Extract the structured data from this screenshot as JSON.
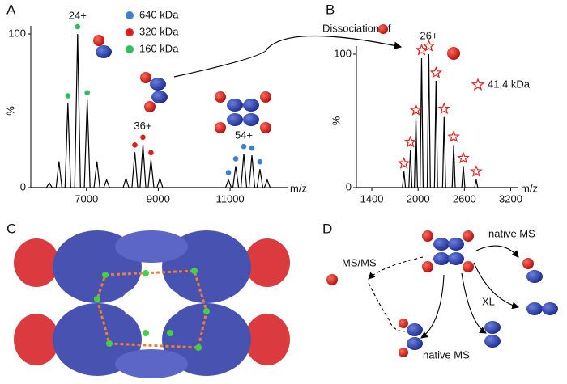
{
  "panel_labels": [
    "A",
    "B",
    "C",
    "D"
  ],
  "arrow_label": "Dissociation of",
  "diagram": {
    "labels": [
      "native MS",
      "MS/MS",
      "XL",
      "native MS"
    ]
  },
  "chart_data": [
    {
      "type": "line",
      "x_label": "m/z",
      "y_label": "%",
      "color": "#000000",
      "xlim": [
        5450,
        12600
      ],
      "ylim": [
        0,
        100
      ],
      "xticks": [
        7000,
        9000,
        11000
      ],
      "yticks": [
        0,
        100
      ],
      "x": [
        5450,
        5886,
        5966,
        6046,
        6156,
        6236,
        6316,
        6403,
        6483,
        6563,
        6673,
        6753,
        6833,
        6942,
        7022,
        7102,
        7212,
        7292,
        7372,
        7482,
        7562,
        7642,
        8021,
        8101,
        8181,
        8268,
        8348,
        8428,
        8493,
        8573,
        8653,
        8718,
        8798,
        8878,
        8965,
        9045,
        9125,
        10875,
        10955,
        11035,
        11077,
        11157,
        11237,
        11302,
        11382,
        11462,
        11527,
        11607,
        11687,
        11751,
        11831,
        11911,
        11954,
        12034,
        12114,
        12600
      ],
      "values": [
        0,
        0,
        3,
        0,
        0,
        17,
        0,
        0,
        55,
        0,
        0,
        100,
        0,
        0,
        57,
        0,
        0,
        17,
        0,
        0,
        5,
        0,
        0,
        6,
        0,
        0,
        23,
        0,
        0,
        28,
        0,
        0,
        18,
        0,
        0,
        6,
        0,
        0,
        5,
        0,
        0,
        14,
        0,
        0,
        22,
        0,
        0,
        21,
        0,
        0,
        12,
        0,
        0,
        5,
        0,
        0
      ],
      "series": [
        {
          "name": "640 kDa",
          "color": "#3f7fd0",
          "marker": "circle",
          "x": [
            10955,
            11157,
            11382,
            11607,
            11831
          ],
          "values": [
            5,
            14,
            22,
            21,
            12
          ]
        },
        {
          "name": "320 kDa",
          "color": "#e0201c",
          "marker": "circle",
          "x": [
            8348,
            8573,
            8798
          ],
          "values": [
            23,
            28,
            18
          ]
        },
        {
          "name": "160 kDa",
          "color": "#2fbf5a",
          "marker": "circle",
          "x": [
            6483,
            6753,
            7022
          ],
          "values": [
            55,
            100,
            57
          ]
        }
      ],
      "annotations": [
        {
          "text": "24+",
          "x": 6753,
          "y": 100
        },
        {
          "text": "36+",
          "x": 8573,
          "y": 28
        },
        {
          "text": "54+",
          "x": 11382,
          "y": 22
        }
      ]
    },
    {
      "type": "line",
      "x_label": "m/z",
      "y_label": "%",
      "color": "#000000",
      "xlim": [
        1200,
        3300
      ],
      "ylim": [
        0,
        100
      ],
      "xticks": [
        1400,
        2000,
        2600,
        3200
      ],
      "yticks": [
        0,
        100
      ],
      "x": [
        1200,
        1796,
        1816,
        1836,
        1880,
        1900,
        1920,
        1952,
        1972,
        1992,
        2025,
        2045,
        2065,
        2119,
        2139,
        2159,
        2212,
        2232,
        2252,
        2317,
        2337,
        2357,
        2441,
        2461,
        2481,
        2566,
        2586,
        2606,
        2733,
        2753,
        2773,
        3300
      ],
      "values": [
        0,
        0,
        12,
        0,
        0,
        28,
        0,
        0,
        52,
        0,
        0,
        97,
        0,
        0,
        100,
        0,
        0,
        80,
        0,
        0,
        53,
        0,
        0,
        32,
        0,
        0,
        16,
        0,
        0,
        6,
        0,
        0
      ],
      "series": [
        {
          "name": "41.4 kDa",
          "color": "#e0201c",
          "marker": "star",
          "x": [
            1816,
            1900,
            1972,
            2045,
            2139,
            2232,
            2337,
            2461,
            2586,
            2753
          ],
          "values": [
            12,
            28,
            52,
            97,
            100,
            80,
            53,
            32,
            16,
            6
          ]
        }
      ],
      "annotations": [
        {
          "text": "26+",
          "x": 2139,
          "y": 100
        }
      ]
    }
  ]
}
